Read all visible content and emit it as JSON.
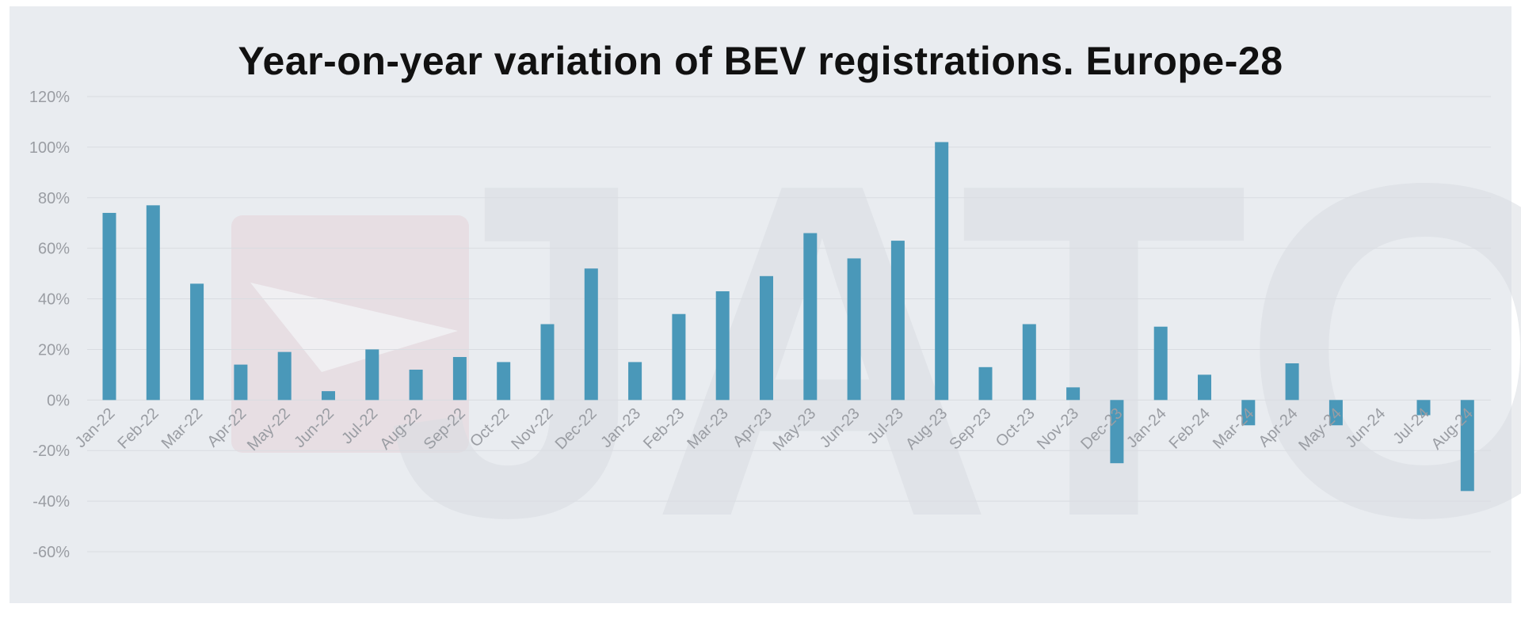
{
  "chart_data": {
    "type": "bar",
    "title": "Year-on-year variation of BEV registrations. Europe-28",
    "xlabel": "",
    "ylabel": "",
    "ylim": [
      -60,
      120
    ],
    "yticks": [
      "120%",
      "100%",
      "80%",
      "60%",
      "40%",
      "20%",
      "0%",
      "-20%",
      "-40%",
      "-60%"
    ],
    "grid": true,
    "bar_color": "#4a98b9",
    "watermark_text": "JATO",
    "categories": [
      "Jan-22",
      "Feb-22",
      "Mar-22",
      "Apr-22",
      "May-22",
      "Jun-22",
      "Jul-22",
      "Aug-22",
      "Sep-22",
      "Oct-22",
      "Nov-22",
      "Dec-22",
      "Jan-23",
      "Feb-23",
      "Mar-23",
      "Apr-23",
      "May-23",
      "Jun-23",
      "Jul-23",
      "Aug-23",
      "Sep-23",
      "Oct-23",
      "Nov-23",
      "Dec-23",
      "Jan-24",
      "Feb-24",
      "Mar-24",
      "Apr-24",
      "May-24",
      "Jun-24",
      "Jul-24",
      "Aug-24"
    ],
    "values": [
      74,
      77,
      46,
      14,
      19,
      3.5,
      20,
      12,
      17,
      15,
      30,
      52,
      15,
      34,
      43,
      49,
      66,
      56,
      63,
      102,
      13,
      30,
      5,
      -25,
      29,
      10,
      -10,
      14.5,
      -10,
      0,
      -6,
      -36
    ]
  }
}
